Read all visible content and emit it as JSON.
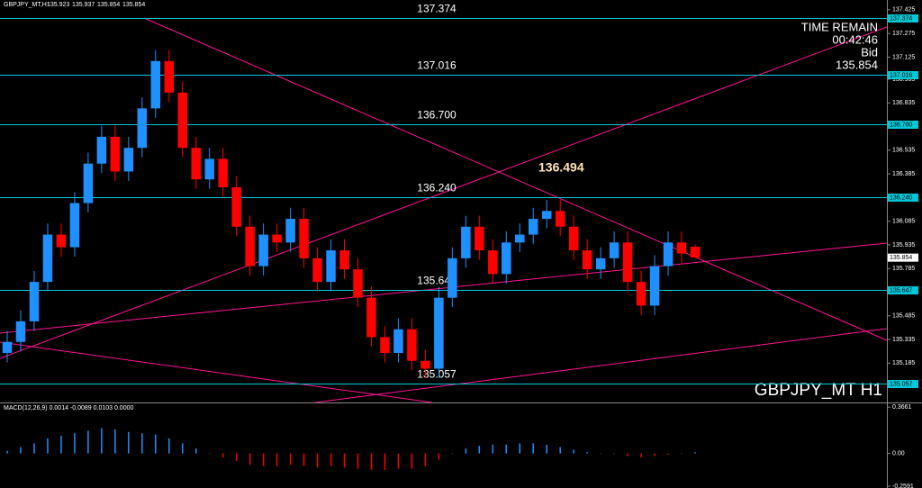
{
  "chart_data": {
    "type": "candlestick",
    "title": "GBPJPY_MT,H1",
    "header_ohlc": [
      135.923,
      135.937,
      135.854,
      135.854
    ],
    "corner_label": "GBPJPY_MT H1",
    "annotation": "136.494",
    "info": {
      "label": "TIME REMAIN",
      "time": "00:42:46",
      "bid_label": "Bid",
      "bid": 135.854
    },
    "up_color": "#1e90ff",
    "down_color": "#ff0000",
    "level_color": "#00c8d8",
    "ylim": [
      134.936,
      137.487
    ],
    "yticks": [
      137.425,
      137.275,
      137.125,
      136.985,
      136.835,
      136.535,
      136.385,
      136.085,
      135.935,
      135.785,
      135.485,
      135.335,
      135.185
    ],
    "levels": [
      {
        "value": 137.374,
        "label": "137.374"
      },
      {
        "value": 137.016,
        "label": "137.016"
      },
      {
        "value": 136.7,
        "label": "136.700"
      },
      {
        "value": 136.24,
        "label": "136.240"
      },
      {
        "value": 135.647,
        "label": "135.647"
      },
      {
        "value": 135.057,
        "label": "135.057"
      }
    ],
    "open": [
      135.25,
      135.32,
      135.45,
      135.7,
      136.0,
      135.92,
      136.2,
      136.45,
      136.62,
      136.4,
      136.55,
      136.8,
      137.1,
      136.9,
      136.55,
      136.35,
      136.48,
      136.3,
      136.05,
      135.8,
      136.0,
      135.95,
      136.1,
      135.85,
      135.7,
      135.9,
      135.78,
      135.6,
      135.35,
      135.25,
      135.4,
      135.2,
      135.15,
      135.6,
      135.85,
      136.05,
      135.9,
      135.75,
      135.95,
      136.0,
      136.1,
      136.15,
      136.05,
      135.9,
      135.78,
      135.85,
      135.95,
      135.7,
      135.55,
      135.8,
      135.95,
      135.923
    ],
    "high": [
      135.39,
      135.52,
      135.77,
      136.07,
      136.07,
      136.27,
      136.52,
      136.69,
      136.69,
      136.62,
      136.87,
      137.17,
      137.17,
      136.97,
      136.62,
      136.55,
      136.55,
      136.37,
      136.12,
      136.07,
      136.07,
      136.17,
      136.17,
      135.92,
      135.97,
      135.97,
      135.85,
      135.67,
      135.42,
      135.47,
      135.47,
      135.27,
      135.67,
      135.92,
      136.12,
      136.12,
      135.97,
      136.02,
      136.07,
      136.17,
      136.22,
      136.22,
      136.12,
      135.97,
      135.92,
      136.02,
      136.02,
      135.77,
      135.87,
      136.02,
      136.02,
      135.937
    ],
    "low": [
      135.19,
      135.26,
      135.39,
      135.64,
      135.86,
      135.86,
      136.14,
      136.39,
      136.34,
      136.34,
      136.49,
      136.74,
      136.84,
      136.49,
      136.29,
      136.29,
      136.24,
      135.99,
      135.74,
      135.74,
      135.89,
      135.89,
      135.79,
      135.64,
      135.64,
      135.72,
      135.54,
      135.29,
      135.19,
      135.19,
      135.14,
      135.09,
      135.09,
      135.54,
      135.79,
      135.84,
      135.69,
      135.69,
      135.89,
      135.94,
      136.04,
      135.99,
      135.84,
      135.72,
      135.72,
      135.79,
      135.64,
      135.49,
      135.49,
      135.74,
      135.82,
      135.854
    ],
    "close": [
      135.32,
      135.45,
      135.7,
      136.0,
      135.92,
      136.2,
      136.45,
      136.62,
      136.4,
      136.55,
      136.8,
      137.1,
      136.9,
      136.55,
      136.35,
      136.48,
      136.3,
      136.05,
      135.8,
      136.0,
      135.95,
      136.1,
      135.85,
      135.7,
      135.9,
      135.78,
      135.6,
      135.35,
      135.25,
      135.4,
      135.2,
      135.15,
      135.6,
      135.85,
      136.05,
      135.9,
      135.75,
      135.95,
      136.0,
      136.1,
      136.15,
      136.05,
      135.9,
      135.78,
      135.85,
      135.95,
      135.7,
      135.55,
      135.8,
      135.95,
      135.88,
      135.854
    ],
    "macd": {
      "label": "MACD(12,26,9) 0.0014 -0.0089 0.0103 0.0000",
      "ylim": [
        -0.266,
        0.396
      ],
      "yticks": [
        0.3661,
        {
          "value": 0,
          "label": "0.00"
        },
        -0.2591
      ],
      "values": [
        0.02,
        0.05,
        0.08,
        0.12,
        0.14,
        0.16,
        0.18,
        0.2,
        0.19,
        0.17,
        0.16,
        0.15,
        0.12,
        0.08,
        0.04,
        0.0,
        -0.03,
        -0.06,
        -0.09,
        -0.1,
        -0.1,
        -0.09,
        -0.1,
        -0.11,
        -0.1,
        -0.11,
        -0.12,
        -0.13,
        -0.13,
        -0.12,
        -0.12,
        -0.1,
        -0.05,
        0.0,
        0.04,
        0.06,
        0.07,
        0.07,
        0.08,
        0.08,
        0.07,
        0.05,
        0.03,
        0.01,
        0.0,
        0.0,
        -0.02,
        -0.03,
        -0.02,
        -0.01,
        0.0,
        0.01
      ]
    }
  }
}
